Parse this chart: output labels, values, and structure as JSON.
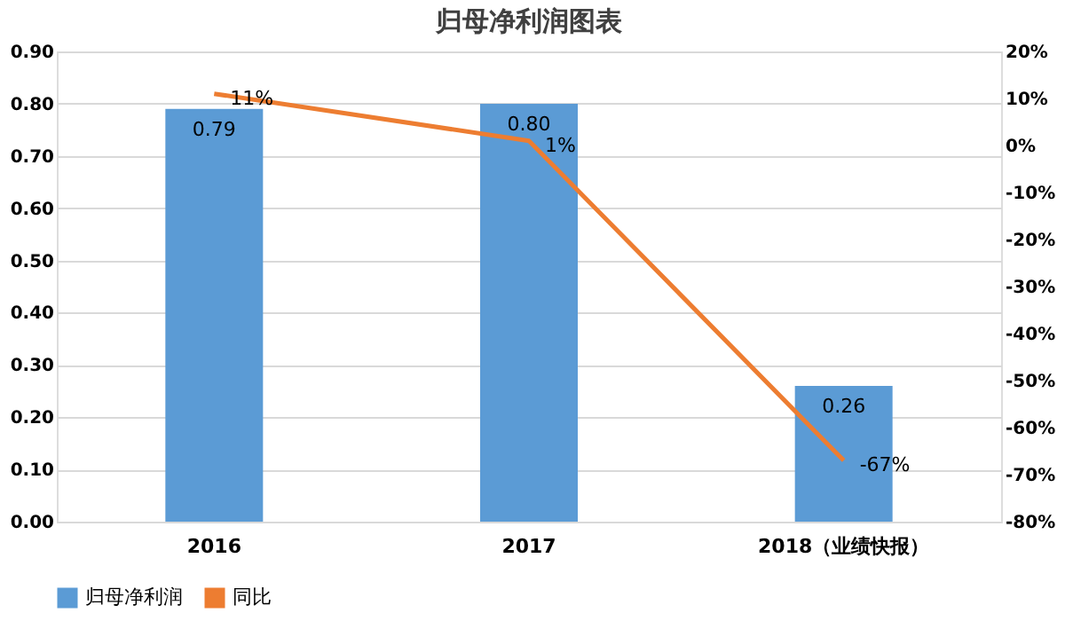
{
  "chart_data": {
    "type": "bar",
    "title": "归母净利润图表",
    "categories": [
      "2016",
      "2017",
      "2018（业绩快报）"
    ],
    "series": [
      {
        "name": "归母净利润",
        "color": "#5b9bd5",
        "values": [
          0.79,
          0.8,
          0.26
        ],
        "value_labels": [
          "0.79",
          "0.80",
          "0.26"
        ]
      },
      {
        "name": "同比",
        "type": "line",
        "axis": "y2",
        "color": "#ed7d31",
        "values": [
          11,
          1,
          -67
        ],
        "value_labels": [
          "11%",
          "1%",
          "-67%"
        ]
      }
    ],
    "ylim": [
      0,
      0.9
    ],
    "yticks": [
      {
        "value": 0,
        "label": "0.00"
      },
      {
        "value": 0.1,
        "label": "0.10"
      },
      {
        "value": 0.2,
        "label": "0.20"
      },
      {
        "value": 0.3,
        "label": "0.30"
      },
      {
        "value": 0.4,
        "label": "0.40"
      },
      {
        "value": 0.5,
        "label": "0.50"
      },
      {
        "value": 0.6,
        "label": "0.60"
      },
      {
        "value": 0.7,
        "label": "0.70"
      },
      {
        "value": 0.8,
        "label": "0.80"
      },
      {
        "value": 0.9,
        "label": "0.90"
      }
    ],
    "y2lim": [
      -80,
      20
    ],
    "y2ticks": [
      {
        "value": -80,
        "label": "-80%"
      },
      {
        "value": -70,
        "label": "-70%"
      },
      {
        "value": -60,
        "label": "-60%"
      },
      {
        "value": -50,
        "label": "-50%"
      },
      {
        "value": -40,
        "label": "-40%"
      },
      {
        "value": -30,
        "label": "-30%"
      },
      {
        "value": -20,
        "label": "-20%"
      },
      {
        "value": -10,
        "label": "-10%"
      },
      {
        "value": 0,
        "label": "0%"
      },
      {
        "value": 10,
        "label": "10%"
      },
      {
        "value": 20,
        "label": "20%"
      }
    ],
    "grid": "y",
    "legend": "bottom",
    "marker": "none",
    "line_style": "solid"
  }
}
